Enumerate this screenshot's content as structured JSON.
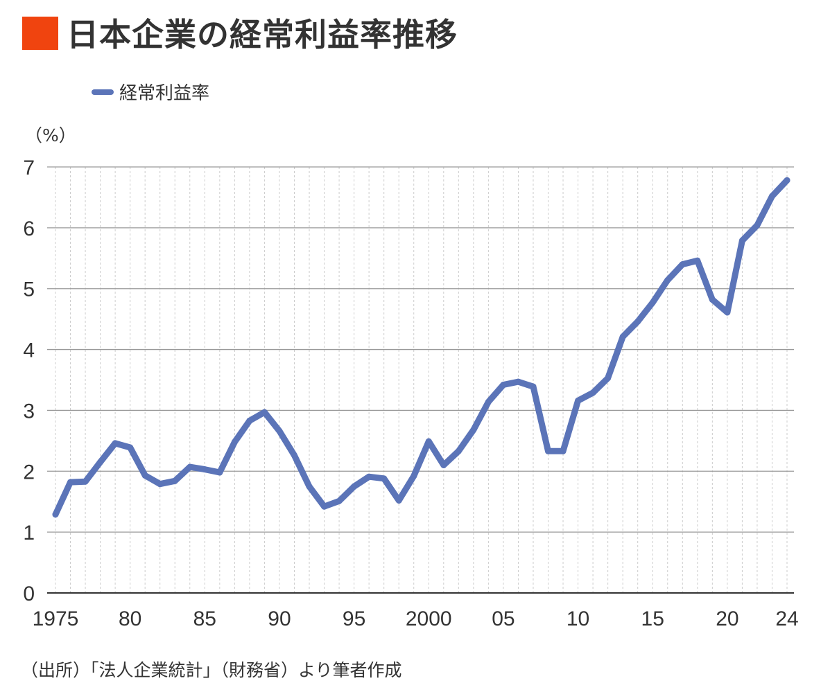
{
  "title": "日本企業の経常利益率推移",
  "source": "（出所）「法人企業統計」（財務省）より筆者作成",
  "colors": {
    "accent": "#f0440f",
    "line": "#5b74b8",
    "grid": "#999999",
    "minor_grid": "#cccccc"
  },
  "chart_data": {
    "type": "line",
    "title": "日本企業の経常利益率推移",
    "ylabel": "（%）",
    "xlabel": "",
    "ylim": [
      0,
      7
    ],
    "yticks": [
      0,
      1,
      2,
      3,
      4,
      5,
      6,
      7
    ],
    "xlim": [
      1975,
      2024
    ],
    "xticks": [
      {
        "year": 1975,
        "label": "1975"
      },
      {
        "year": 1980,
        "label": "80"
      },
      {
        "year": 1985,
        "label": "85"
      },
      {
        "year": 1990,
        "label": "90"
      },
      {
        "year": 1995,
        "label": "95"
      },
      {
        "year": 2000,
        "label": "2000"
      },
      {
        "year": 2005,
        "label": "05"
      },
      {
        "year": 2010,
        "label": "10"
      },
      {
        "year": 2015,
        "label": "15"
      },
      {
        "year": 2020,
        "label": "20"
      },
      {
        "year": 2024,
        "label": "24"
      }
    ],
    "grid": true,
    "legend_position": "top-left",
    "series": [
      {
        "name": "経常利益率",
        "x": [
          1975,
          1976,
          1977,
          1978,
          1979,
          1980,
          1981,
          1982,
          1983,
          1984,
          1985,
          1986,
          1987,
          1988,
          1989,
          1990,
          1991,
          1992,
          1993,
          1994,
          1995,
          1996,
          1997,
          1998,
          1999,
          2000,
          2001,
          2002,
          2003,
          2004,
          2005,
          2006,
          2007,
          2008,
          2009,
          2010,
          2011,
          2012,
          2013,
          2014,
          2015,
          2016,
          2017,
          2018,
          2019,
          2020,
          2021,
          2022,
          2023,
          2024
        ],
        "values": [
          1.29,
          1.82,
          1.83,
          2.15,
          2.46,
          2.39,
          1.93,
          1.79,
          1.84,
          2.07,
          2.03,
          1.98,
          2.48,
          2.83,
          2.97,
          2.66,
          2.26,
          1.75,
          1.42,
          1.51,
          1.75,
          1.91,
          1.88,
          1.52,
          1.92,
          2.49,
          2.1,
          2.33,
          2.68,
          3.14,
          3.42,
          3.47,
          3.39,
          2.33,
          2.33,
          3.16,
          3.29,
          3.53,
          4.21,
          4.46,
          4.77,
          5.14,
          5.4,
          5.46,
          4.82,
          4.61,
          5.79,
          6.04,
          6.52,
          6.78
        ]
      }
    ]
  }
}
